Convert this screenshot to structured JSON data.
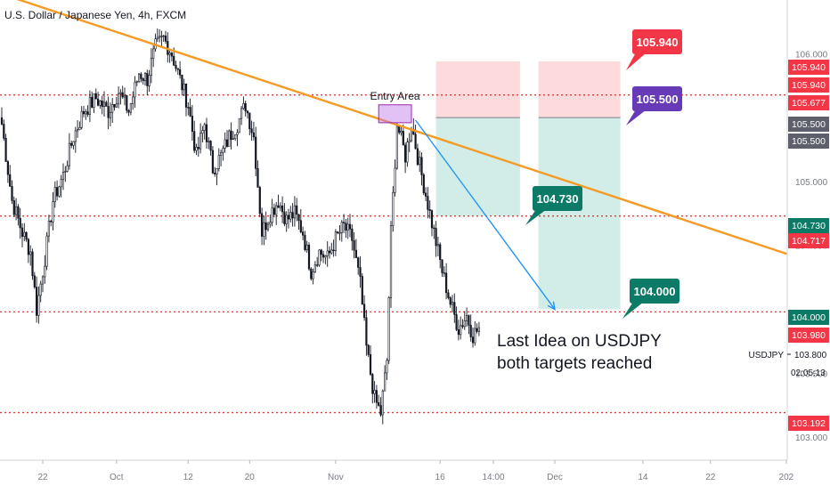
{
  "chart_data": {
    "type": "candlestick",
    "title": "U.S. Dollar / Japanese Yen, 4h, FXCM",
    "symbol": "USDJPY",
    "timeframe": "4h",
    "ylim": [
      102.82,
      106.42
    ],
    "x_tick_labels": [
      {
        "label": "22",
        "bar": 20
      },
      {
        "label": "Oct",
        "bar": 56
      },
      {
        "label": "12",
        "bar": 91
      },
      {
        "label": "20",
        "bar": 121
      },
      {
        "label": "Nov",
        "bar": 163
      },
      {
        "label": "16",
        "bar": 214
      },
      {
        "label": "14:00",
        "bar": 240
      },
      {
        "label": "Dec",
        "bar": 270
      },
      {
        "label": "14",
        "bar": 313
      },
      {
        "label": "22",
        "bar": 346
      },
      {
        "label": "202",
        "bar": 383
      }
    ],
    "y_tick_labels": [
      "106.000",
      "105.000",
      "104.500",
      "103.500",
      "103.000"
    ],
    "price_labels": [
      {
        "value": 105.94,
        "text": "105.940",
        "color": "#f23645"
      },
      {
        "value": 105.94,
        "text": "105.940",
        "color": "#f23645"
      },
      {
        "value": 105.677,
        "text": "105.677",
        "color": "#f23645"
      },
      {
        "value": 105.5,
        "text": "105.500",
        "color": "#5d606b"
      },
      {
        "value": 105.5,
        "text": "105.500",
        "color": "#5d606b"
      },
      {
        "value": 104.73,
        "text": "104.730",
        "color": "#0b7a66"
      },
      {
        "value": 104.717,
        "text": "104.717",
        "color": "#f23645"
      },
      {
        "value": 104.0,
        "text": "104.000",
        "color": "#0b7a66"
      },
      {
        "value": 103.98,
        "text": "103.980",
        "color": "#f23645"
      },
      {
        "value": 103.192,
        "text": "103.192",
        "color": "#f23645"
      }
    ],
    "current_price": {
      "label": "USDJPY",
      "value": "103.800",
      "countdown": "02:05:13"
    },
    "horizontal_levels": [
      105.677,
      104.73,
      103.98,
      103.192
    ],
    "trendline": {
      "from": {
        "bar": -10,
        "price": 106.52
      },
      "to": {
        "bar": 384,
        "price": 104.43
      },
      "color": "#f59a23"
    },
    "entry_zone": {
      "bar_start": 184,
      "bar_end": 200,
      "top": 105.6,
      "bottom": 105.46,
      "label": "Entry Area"
    },
    "positions": [
      {
        "bar_start": 212,
        "bar_end": 253,
        "entry": 105.5,
        "stop": 105.94,
        "target": 104.73
      },
      {
        "bar_start": 262,
        "bar_end": 302,
        "entry": 105.5,
        "stop": 105.94,
        "target": 104.0
      }
    ],
    "projection": {
      "from": {
        "bar": 202,
        "price": 105.48
      },
      "to": {
        "bar": 270,
        "price": 104.0
      },
      "color": "#2196f3"
    },
    "callouts": [
      {
        "text": "105.940",
        "color": "#f23645",
        "value": 105.94
      },
      {
        "text": "105.500",
        "color": "#673ab7",
        "value": 105.5
      },
      {
        "text": "104.730",
        "color": "#0b7a66",
        "value": 104.73
      },
      {
        "text": "104.000",
        "color": "#0b7a66",
        "value": 104.0
      }
    ],
    "annotation": [
      "Last Idea on USDJPY",
      "both targets reached"
    ],
    "path": [
      [
        0,
        105.45
      ],
      [
        5,
        104.85
      ],
      [
        10,
        104.6
      ],
      [
        14,
        104.45
      ],
      [
        17,
        104.0
      ],
      [
        21,
        104.4
      ],
      [
        25,
        104.85
      ],
      [
        30,
        105.05
      ],
      [
        35,
        105.35
      ],
      [
        40,
        105.55
      ],
      [
        46,
        105.65
      ],
      [
        52,
        105.55
      ],
      [
        57,
        105.7
      ],
      [
        62,
        105.55
      ],
      [
        67,
        105.85
      ],
      [
        71,
        105.8
      ],
      [
        75,
        106.05
      ],
      [
        79,
        106.12
      ],
      [
        83,
        106.0
      ],
      [
        87,
        105.8
      ],
      [
        91,
        105.6
      ],
      [
        95,
        105.2
      ],
      [
        99,
        105.45
      ],
      [
        103,
        105.1
      ],
      [
        107,
        105.2
      ],
      [
        111,
        105.35
      ],
      [
        115,
        105.45
      ],
      [
        119,
        105.6
      ],
      [
        123,
        105.35
      ],
      [
        127,
        104.6
      ],
      [
        131,
        104.75
      ],
      [
        135,
        104.85
      ],
      [
        139,
        104.7
      ],
      [
        143,
        104.75
      ],
      [
        147,
        104.6
      ],
      [
        151,
        104.3
      ],
      [
        155,
        104.45
      ],
      [
        159,
        104.4
      ],
      [
        163,
        104.55
      ],
      [
        167,
        104.65
      ],
      [
        171,
        104.55
      ],
      [
        175,
        104.2
      ],
      [
        178,
        103.7
      ],
      [
        182,
        103.3
      ],
      [
        185,
        103.19
      ],
      [
        188,
        103.6
      ],
      [
        190,
        104.6
      ],
      [
        193,
        105.45
      ],
      [
        197,
        105.2
      ],
      [
        200,
        105.45
      ],
      [
        203,
        105.2
      ],
      [
        207,
        104.9
      ],
      [
        211,
        104.6
      ],
      [
        215,
        104.3
      ],
      [
        219,
        104.05
      ],
      [
        223,
        103.85
      ],
      [
        227,
        103.95
      ],
      [
        230,
        103.8
      ],
      [
        233,
        103.85
      ]
    ]
  }
}
